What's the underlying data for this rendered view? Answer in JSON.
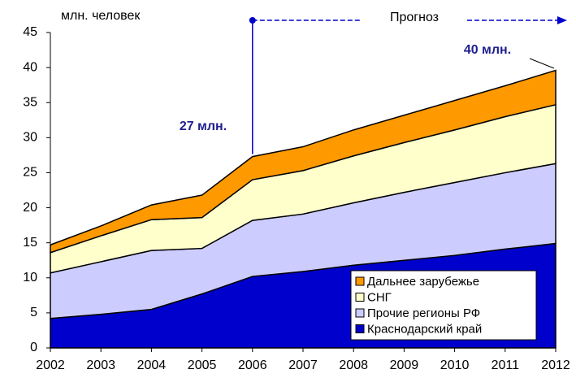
{
  "chart_data": {
    "type": "stacked_area",
    "y_label": "млн. человек",
    "annotations": {
      "forecast": "Прогноз",
      "value_2006": "27 млн.",
      "value_2012": "40 млн."
    },
    "x": [
      2002,
      2003,
      2004,
      2005,
      2006,
      2007,
      2008,
      2009,
      2010,
      2011,
      2012
    ],
    "xlim": [
      2002,
      2012
    ],
    "xticks": [
      2002,
      2003,
      2004,
      2005,
      2006,
      2007,
      2008,
      2009,
      2010,
      2011,
      2012
    ],
    "ylim": [
      0,
      45
    ],
    "yticks": [
      0,
      5,
      10,
      15,
      20,
      25,
      30,
      35,
      40,
      45
    ],
    "legend": "lower right",
    "series": [
      {
        "name": "Краснодарский край",
        "color": "#0000cc",
        "values": [
          4.2,
          4.8,
          5.5,
          7.7,
          10.2,
          10.9,
          11.8,
          12.5,
          13.2,
          14.1,
          14.9
        ]
      },
      {
        "name": "Прочие регионы РФ",
        "color": "#ccccff",
        "values": [
          6.5,
          7.5,
          8.4,
          6.5,
          8.0,
          8.2,
          8.9,
          9.7,
          10.4,
          10.9,
          11.4
        ]
      },
      {
        "name": "СНГ",
        "color": "#ffffcc",
        "values": [
          2.9,
          3.7,
          4.4,
          4.4,
          5.8,
          6.2,
          6.7,
          7.1,
          7.5,
          8.0,
          8.4
        ]
      },
      {
        "name": "Дальнее зарубежье",
        "color": "#ff9900",
        "values": [
          1.1,
          1.4,
          2.1,
          3.2,
          3.3,
          3.4,
          3.7,
          3.9,
          4.2,
          4.4,
          4.9
        ]
      }
    ]
  }
}
